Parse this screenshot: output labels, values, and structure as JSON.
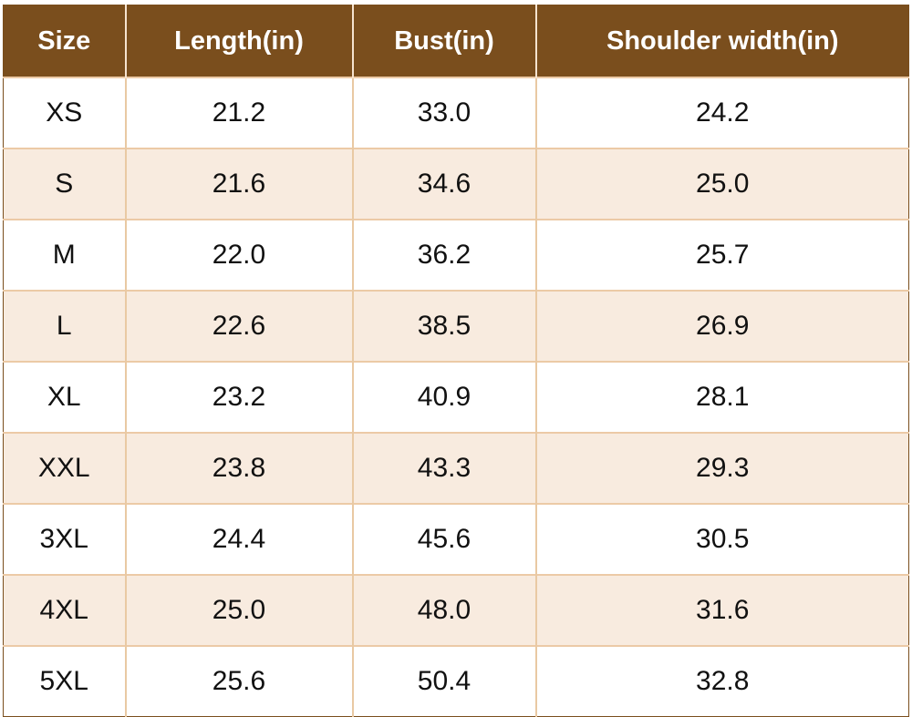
{
  "table": {
    "headers": [
      "Size",
      "Length(in)",
      "Bust(in)",
      "Shoulder width(in)"
    ],
    "rows": [
      [
        "XS",
        "21.2",
        "33.0",
        "24.2"
      ],
      [
        "S",
        "21.6",
        "34.6",
        "25.0"
      ],
      [
        "M",
        "22.0",
        "36.2",
        "25.7"
      ],
      [
        "L",
        "22.6",
        "38.5",
        "26.9"
      ],
      [
        "XL",
        "23.2",
        "40.9",
        "28.1"
      ],
      [
        "XXL",
        "23.8",
        "43.3",
        "29.3"
      ],
      [
        "3XL",
        "24.4",
        "45.6",
        "30.5"
      ],
      [
        "4XL",
        "25.0",
        "48.0",
        "31.6"
      ],
      [
        "5XL",
        "25.6",
        "50.4",
        "32.8"
      ]
    ]
  },
  "colors": {
    "header_bg": "#7a4e1d",
    "header_text": "#ffffff",
    "row_alt_bg": "#f8ebdf",
    "grid_line": "#e9c9a3"
  }
}
